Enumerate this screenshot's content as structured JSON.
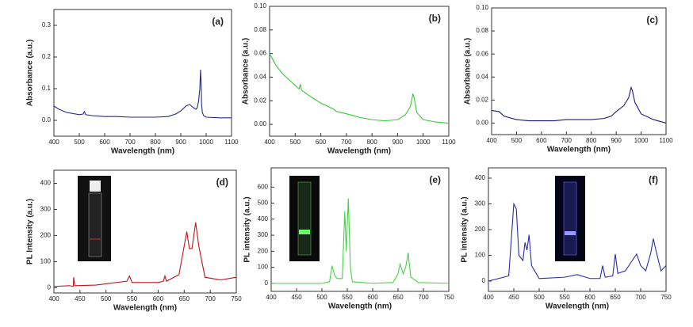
{
  "chart_data": [
    {
      "type": "line",
      "panel_label": "(a)",
      "xlabel": "Wavelength (nm)",
      "ylabel": "Absorbance (a.u.)",
      "x": [
        400,
        420,
        450,
        500,
        515,
        520,
        525,
        550,
        600,
        650,
        700,
        750,
        800,
        850,
        880,
        900,
        920,
        935,
        950,
        960,
        965,
        970,
        975,
        978,
        980,
        982,
        985,
        990,
        1000,
        1050,
        1100
      ],
      "series": [
        {
          "color": "#2a2a8a",
          "values": [
            0.045,
            0.035,
            0.025,
            0.018,
            0.02,
            0.028,
            0.018,
            0.015,
            0.012,
            0.012,
            0.01,
            0.01,
            0.01,
            0.012,
            0.02,
            0.03,
            0.045,
            0.05,
            0.04,
            0.035,
            0.04,
            0.06,
            0.1,
            0.16,
            0.12,
            0.05,
            0.025,
            0.015,
            0.01,
            0.008,
            0.008
          ]
        }
      ],
      "xlim": [
        400,
        1100
      ],
      "xticks": [
        400,
        500,
        600,
        700,
        800,
        900,
        1000,
        1100
      ],
      "ylim": [
        -0.05,
        0.35
      ],
      "yticks": [
        {
          "value": 0,
          "label": "0.0"
        },
        0.1,
        0.2,
        0.3
      ]
    },
    {
      "type": "line",
      "panel_label": "(b)",
      "xlabel": "Wavelength (nm)",
      "ylabel": "Absorbance (a.u.)",
      "x": [
        400,
        425,
        450,
        500,
        515,
        520,
        525,
        550,
        600,
        650,
        660,
        700,
        750,
        800,
        850,
        900,
        930,
        950,
        960,
        965,
        975,
        1000,
        1050,
        1100
      ],
      "series": [
        {
          "color": "#33cc33",
          "values": [
            0.06,
            0.05,
            0.043,
            0.033,
            0.03,
            0.034,
            0.029,
            0.025,
            0.018,
            0.013,
            0.011,
            0.009,
            0.006,
            0.004,
            0.003,
            0.004,
            0.008,
            0.015,
            0.026,
            0.022,
            0.01,
            0.004,
            0.002,
            0.001
          ]
        }
      ],
      "xlim": [
        400,
        1100
      ],
      "xticks": [
        400,
        500,
        600,
        700,
        800,
        900,
        1000,
        1100
      ],
      "ylim": [
        -0.01,
        0.1
      ],
      "yticks": [
        {
          "value": 0,
          "label": "0.00"
        },
        {
          "value": 0.02,
          "label": "0.02"
        },
        {
          "value": 0.04,
          "label": "0.04"
        },
        {
          "value": 0.06,
          "label": "0.06"
        },
        {
          "value": 0.08,
          "label": "0.08"
        },
        {
          "value": 0.1,
          "label": "0.10"
        }
      ]
    },
    {
      "type": "line",
      "panel_label": "(c)",
      "xlabel": "Wavelength (nm)",
      "ylabel": "Absorbance (a.u.)",
      "x": [
        400,
        430,
        450,
        500,
        550,
        600,
        650,
        700,
        750,
        800,
        850,
        880,
        900,
        930,
        950,
        960,
        965,
        975,
        1000,
        1050,
        1100
      ],
      "series": [
        {
          "color": "#1a1a80",
          "values": [
            0.011,
            0.01,
            0.006,
            0.003,
            0.002,
            0.002,
            0.002,
            0.003,
            0.003,
            0.003,
            0.004,
            0.006,
            0.01,
            0.015,
            0.022,
            0.031,
            0.028,
            0.018,
            0.008,
            0.003,
            0.0
          ]
        }
      ],
      "xlim": [
        400,
        1100
      ],
      "xticks": [
        400,
        500,
        600,
        700,
        800,
        900,
        1000,
        1100
      ],
      "ylim": [
        -0.01,
        0.1
      ],
      "yticks": [
        {
          "value": 0,
          "label": "0.00"
        },
        {
          "value": 0.02,
          "label": "0.02"
        },
        {
          "value": 0.04,
          "label": "0.04"
        },
        {
          "value": 0.06,
          "label": "0.06"
        },
        {
          "value": 0.08,
          "label": "0.08"
        },
        {
          "value": 0.1,
          "label": "0.10"
        }
      ]
    },
    {
      "type": "line",
      "panel_label": "(d)",
      "xlabel": "Wavelength (nm)",
      "ylabel": "PL Intensity (a.u.)",
      "x": [
        400,
        430,
        437,
        438,
        440,
        480,
        540,
        545,
        550,
        600,
        610,
        613,
        616,
        640,
        655,
        660,
        665,
        672,
        678,
        690,
        720,
        750
      ],
      "series": [
        {
          "color": "#c0141c",
          "values": [
            5,
            8,
            5,
            40,
            8,
            10,
            25,
            45,
            20,
            20,
            25,
            45,
            25,
            50,
            215,
            150,
            150,
            250,
            160,
            40,
            30,
            40
          ]
        }
      ],
      "xlim": [
        400,
        750
      ],
      "xticks": [
        400,
        450,
        500,
        550,
        600,
        650,
        700,
        750
      ],
      "ylim": [
        -20,
        450
      ],
      "yticks": [
        0,
        100,
        200,
        300,
        400
      ]
    },
    {
      "type": "line",
      "panel_label": "(e)",
      "xlabel": "Wavelength (nm)",
      "ylabel": "PL intensity (a.u.)",
      "x": [
        400,
        500,
        515,
        520,
        525,
        530,
        540,
        545,
        548,
        552,
        556,
        560,
        600,
        640,
        650,
        654,
        660,
        665,
        670,
        675,
        690,
        750
      ],
      "series": [
        {
          "color": "#44d444",
          "values": [
            0,
            0,
            10,
            110,
            50,
            30,
            30,
            450,
            200,
            530,
            100,
            10,
            0,
            5,
            60,
            120,
            60,
            100,
            190,
            40,
            5,
            0
          ]
        }
      ],
      "xlim": [
        400,
        750
      ],
      "xticks": [
        400,
        450,
        500,
        550,
        600,
        650,
        700,
        750
      ],
      "ylim": [
        -50,
        720
      ],
      "yticks": [
        0,
        100,
        200,
        300,
        400,
        500,
        600
      ]
    },
    {
      "type": "line",
      "panel_label": "(f)",
      "xlabel": "Wavelength (nm)",
      "ylabel": "PL intensity (a.u.)",
      "x": [
        400,
        440,
        450,
        455,
        460,
        468,
        472,
        476,
        480,
        485,
        500,
        550,
        575,
        600,
        620,
        625,
        630,
        645,
        650,
        655,
        670,
        680,
        692,
        700,
        710,
        720,
        725,
        730,
        740,
        750
      ],
      "series": [
        {
          "color": "#2b2bb0",
          "values": [
            0,
            20,
            300,
            280,
            100,
            80,
            150,
            120,
            180,
            60,
            10,
            15,
            25,
            10,
            10,
            60,
            15,
            20,
            105,
            30,
            40,
            70,
            105,
            60,
            40,
            110,
            165,
            120,
            40,
            60
          ]
        }
      ],
      "xlim": [
        400,
        750
      ],
      "xticks": [
        400,
        450,
        500,
        550,
        600,
        650,
        700,
        750
      ],
      "ylim": [
        -40,
        440
      ],
      "yticks": [
        0,
        100,
        200,
        300,
        400
      ]
    }
  ]
}
